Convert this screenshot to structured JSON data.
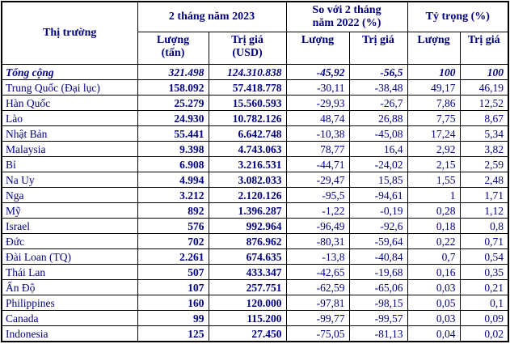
{
  "colors": {
    "text": "#000080",
    "border": "#000000",
    "background": "#ffffff"
  },
  "table": {
    "corner_header": "Thị trường",
    "group_headers": [
      "2 tháng năm 2023",
      "So với 2 tháng\nnăm 2022 (%)",
      "Tỷ trọng (%)"
    ],
    "sub_headers": [
      "Lượng\n(tấn)",
      "Trị giá\n(USD)",
      "Lượng",
      "Trị giá",
      "Lượng",
      "Trị giá"
    ],
    "total_row": {
      "label": "Tổng cộng",
      "values": [
        "321.498",
        "124.310.838",
        "-45,92",
        "-56,5",
        "100",
        "100"
      ]
    },
    "rows": [
      {
        "label": "Trung Quốc (Đại lục)",
        "values": [
          "158.092",
          "57.418.778",
          "-30,11",
          "-38,48",
          "49,17",
          "46,19"
        ]
      },
      {
        "label": "Hàn Quốc",
        "values": [
          "25.279",
          "15.560.593",
          "-29,93",
          "-26,7",
          "7,86",
          "12,52"
        ]
      },
      {
        "label": "Lào",
        "values": [
          "24.930",
          "10.782.126",
          "48,74",
          "26,88",
          "7,75",
          "8,67"
        ]
      },
      {
        "label": "Nhật Bản",
        "values": [
          "55.441",
          "6.642.748",
          "-10,38",
          "-45,08",
          "17,24",
          "5,34"
        ]
      },
      {
        "label": "Malaysia",
        "values": [
          "9.398",
          "4.743.063",
          "78,77",
          "16,4",
          "2,92",
          "3,82"
        ]
      },
      {
        "label": "Bỉ",
        "values": [
          "6.908",
          "3.216.531",
          "-44,71",
          "-24,02",
          "2,15",
          "2,59"
        ]
      },
      {
        "label": "Na Uy",
        "values": [
          "4.994",
          "3.082.033",
          "-29,47",
          "15,85",
          "1,55",
          "2,48"
        ]
      },
      {
        "label": "Nga",
        "values": [
          "3.212",
          "2.120.126",
          "-95,5",
          "-94,61",
          "1",
          "1,71"
        ]
      },
      {
        "label": "Mỹ",
        "values": [
          "892",
          "1.396.287",
          "-1,22",
          "-0,19",
          "0,28",
          "1,12"
        ]
      },
      {
        "label": "Israel",
        "values": [
          "576",
          "992.964",
          "-96,49",
          "-92,6",
          "0,18",
          "0,8"
        ]
      },
      {
        "label": "Đức",
        "values": [
          "702",
          "876.962",
          "-80,31",
          "-59,64",
          "0,22",
          "0,71"
        ]
      },
      {
        "label": "Đài Loan (TQ)",
        "values": [
          "2.261",
          "674.635",
          "-13,8",
          "-40,84",
          "0,7",
          "0,54"
        ]
      },
      {
        "label": "Thái Lan",
        "values": [
          "507",
          "433.347",
          "-42,65",
          "-19,68",
          "0,16",
          "0,35"
        ]
      },
      {
        "label": "Ấn Độ",
        "values": [
          "107",
          "257.751",
          "-62,59",
          "-65,06",
          "0,03",
          "0,21"
        ]
      },
      {
        "label": "Philippines",
        "values": [
          "160",
          "120.000",
          "-97,81",
          "-98,15",
          "0,05",
          "0,1"
        ]
      },
      {
        "label": "Canada",
        "values": [
          "99",
          "115.200",
          "-99,77",
          "-99,57",
          "0,03",
          "0,09"
        ]
      },
      {
        "label": "Indonesia",
        "values": [
          "125",
          "27.450",
          "-75,05",
          "-81,13",
          "0,04",
          "0,02"
        ]
      }
    ]
  }
}
